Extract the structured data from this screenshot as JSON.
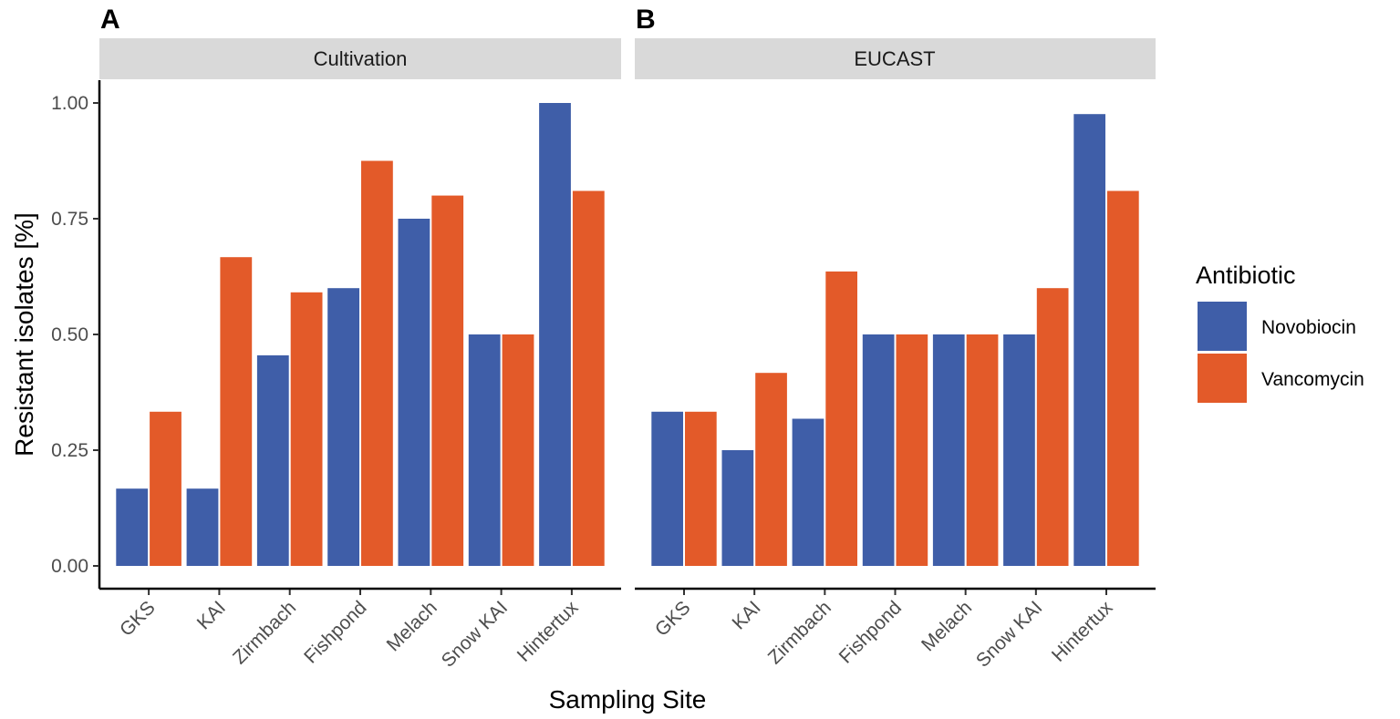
{
  "chart_data": {
    "type": "bar",
    "ylabel": "Resistant isolates [%]",
    "xlabel": "Sampling Site",
    "ylim": [
      0,
      1.05
    ],
    "yticks": [
      0.0,
      0.25,
      0.5,
      0.75,
      1.0
    ],
    "ytick_labels": [
      "0.00",
      "0.25",
      "0.50",
      "0.75",
      "1.00"
    ],
    "categories": [
      "GKS",
      "KAI",
      "Zirmbach",
      "Fishpond",
      "Melach",
      "Snow KAI",
      "Hintertux"
    ],
    "legend": {
      "title": "Antibiotic",
      "position": "right",
      "items": [
        {
          "name": "Novobiocin",
          "color": "#3f5ea8"
        },
        {
          "name": "Vancomycin",
          "color": "#e35a29"
        }
      ]
    },
    "panels": [
      {
        "letter": "A",
        "facet": "Cultivation",
        "series": [
          {
            "name": "Novobiocin",
            "values": [
              0.167,
              0.167,
              0.455,
              0.6,
              0.75,
              0.5,
              1.0
            ]
          },
          {
            "name": "Vancomycin",
            "values": [
              0.333,
              0.667,
              0.591,
              0.875,
              0.8,
              0.5,
              0.81
            ]
          }
        ]
      },
      {
        "letter": "B",
        "facet": "EUCAST",
        "series": [
          {
            "name": "Novobiocin",
            "values": [
              0.333,
              0.25,
              0.318,
              0.5,
              0.5,
              0.5,
              0.976
            ]
          },
          {
            "name": "Vancomycin",
            "values": [
              0.333,
              0.417,
              0.636,
              0.5,
              0.5,
              0.6,
              0.81
            ]
          }
        ]
      }
    ]
  }
}
